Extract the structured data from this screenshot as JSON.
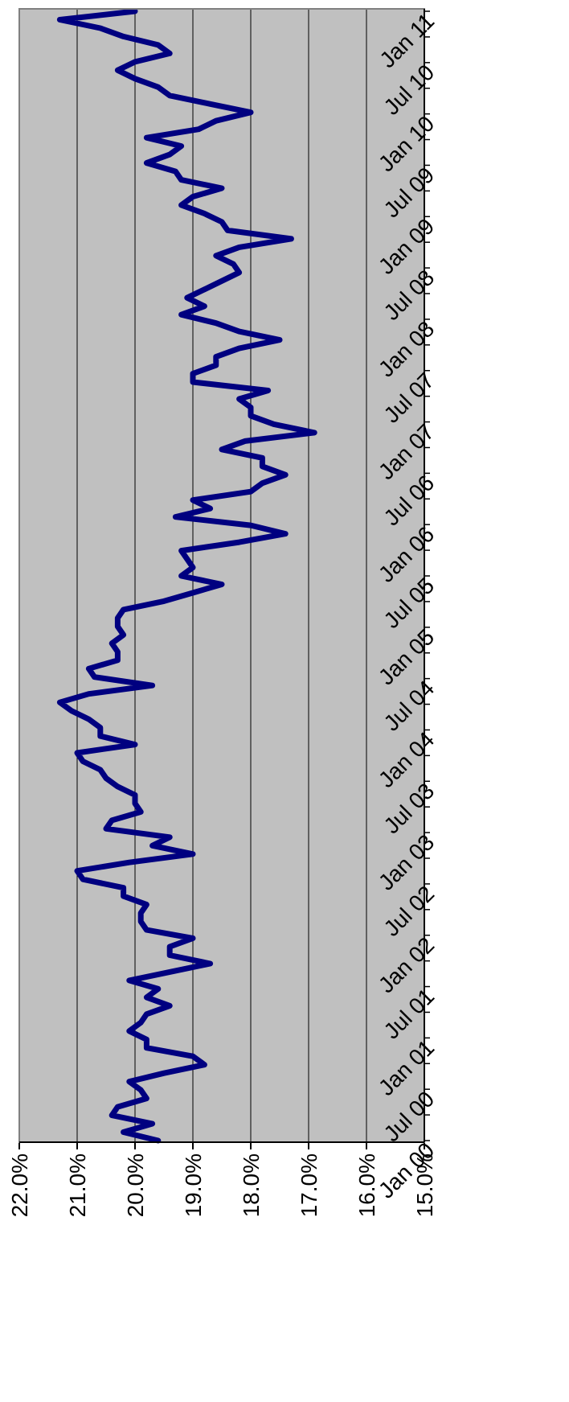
{
  "chart_data": {
    "type": "line",
    "orientation": "rotated-90-clockwise",
    "title": "",
    "xlabel": "",
    "ylabel": "",
    "x_ticks": [
      "Jan 00",
      "Jul 00",
      "Jan 01",
      "Jul 01",
      "Jan 02",
      "Jul 02",
      "Jan 03",
      "Jul 03",
      "Jan 04",
      "Jul 04",
      "Jan 05",
      "Jul 05",
      "Jan 06",
      "Jul 06",
      "Jan 07",
      "Jul 07",
      "Jan 08",
      "Jul 08",
      "Jan 09",
      "Jul 09",
      "Jan 10",
      "Jul 10",
      "Jan 11"
    ],
    "y_ticks": [
      "22.0%",
      "21.0%",
      "20.0%",
      "19.0%",
      "18.0%",
      "17.0%",
      "16.0%",
      "15.0%"
    ],
    "ylim": [
      15.0,
      22.0
    ],
    "grid": true,
    "colors": {
      "line": "#000080",
      "plot_background": "#c0c0c0",
      "gridline": "#000000"
    },
    "series": [
      {
        "values": [
          19.6,
          20.2,
          19.7,
          20.4,
          20.3,
          19.8,
          19.9,
          20.1,
          19.5,
          18.8,
          19.0,
          19.8,
          19.8,
          20.1,
          19.9,
          19.8,
          19.4,
          19.8,
          19.6,
          20.1,
          19.4,
          18.7,
          19.4,
          19.4,
          19.0,
          19.8,
          19.9,
          19.9,
          19.8,
          20.2,
          20.2,
          20.9,
          21.0,
          20.1,
          19.0,
          19.7,
          19.4,
          20.5,
          20.4,
          19.9,
          20.0,
          20.0,
          20.3,
          20.5,
          20.6,
          20.9,
          21.0,
          20.0,
          20.6,
          20.6,
          20.8,
          21.1,
          21.3,
          20.8,
          19.7,
          20.7,
          20.8,
          20.3,
          20.3,
          20.4,
          20.2,
          20.3,
          20.3,
          20.2,
          19.5,
          19.0,
          18.5,
          19.2,
          19.0,
          19.1,
          19.2,
          18.2,
          17.4,
          18.0,
          19.3,
          18.7,
          19.0,
          18.0,
          17.8,
          17.4,
          17.8,
          17.8,
          18.5,
          18.1,
          16.9,
          17.6,
          18.0,
          18.0,
          18.2,
          17.7,
          19.0,
          19.0,
          18.6,
          18.6,
          18.2,
          17.5,
          18.2,
          18.6,
          19.2,
          18.8,
          19.1,
          18.8,
          18.5,
          18.2,
          18.3,
          18.6,
          18.2,
          17.3,
          18.4,
          18.5,
          18.8,
          19.2,
          19.0,
          18.5,
          19.2,
          19.3,
          19.8,
          19.4,
          19.2,
          19.8,
          18.9,
          18.6,
          18.0,
          18.7,
          19.4,
          19.6,
          20.0,
          20.3,
          20.0,
          19.4,
          19.6,
          20.2,
          20.6,
          21.3,
          20.0
        ]
      }
    ]
  }
}
